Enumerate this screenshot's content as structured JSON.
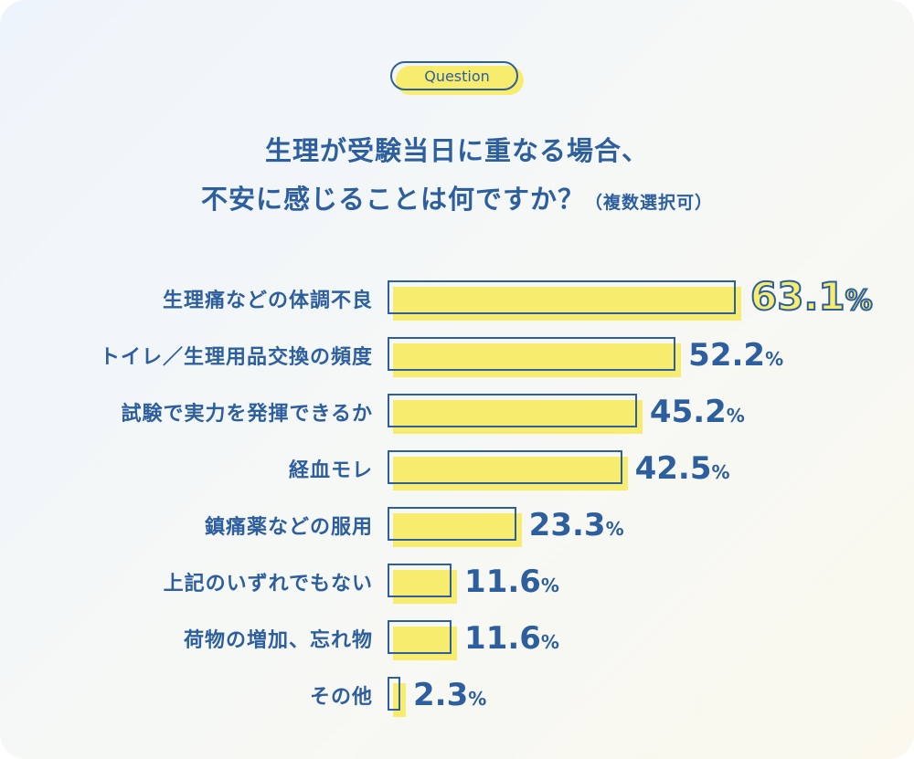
{
  "badge": "Question",
  "title_line1": "生理が受験当日に重なる場合、",
  "title_line2": "不安に感じることは何ですか？",
  "title_note": "（複数選択可）",
  "colors": {
    "accent": "#2d5f9e",
    "bar": "#f7ec6e"
  },
  "chart_data": {
    "type": "bar",
    "orientation": "horizontal",
    "categories": [
      "生理痛などの体調不良",
      "トイレ／生理用品交換の頻度",
      "試験で実力を発揮できるか",
      "経血モレ",
      "鎮痛薬などの服用",
      "上記のいずれでもない",
      "荷物の増加、忘れ物",
      "その他"
    ],
    "values": [
      63.1,
      52.2,
      45.2,
      42.5,
      23.3,
      11.6,
      11.6,
      2.3
    ],
    "unit": "%"
  }
}
